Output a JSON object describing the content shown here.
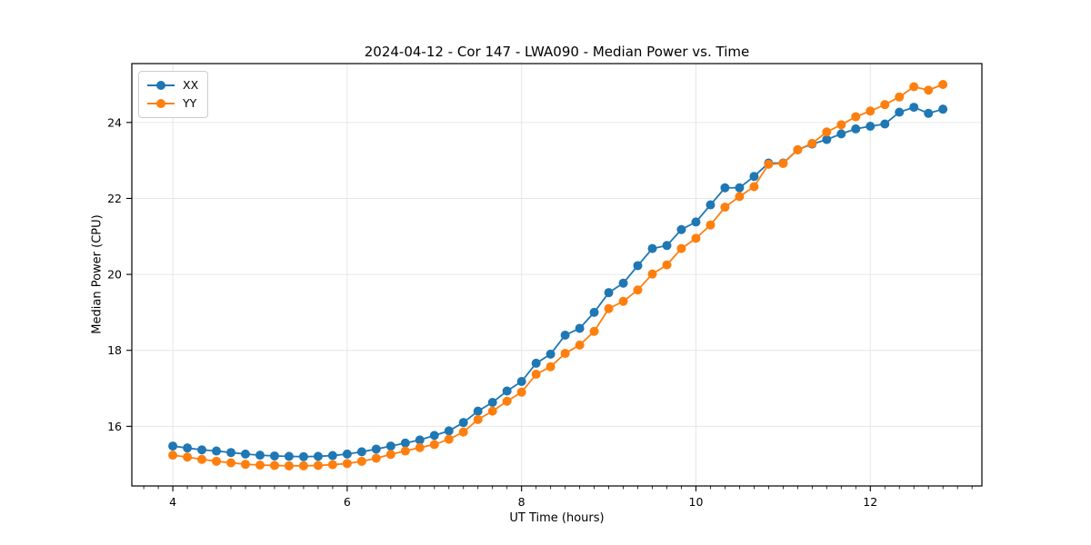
{
  "chart_data": {
    "type": "line",
    "title": "2024-04-12 - Cor 147 - LWA090 - Median Power vs. Time",
    "xlabel": "UT Time (hours)",
    "ylabel": "Median Power (CPU)",
    "xlim": [
      3.53,
      13.28
    ],
    "ylim": [
      14.43,
      25.55
    ],
    "x_major_ticks": [
      4,
      6,
      8,
      10,
      12
    ],
    "x_minor_tick_step": 0.16667,
    "y_major_ticks": [
      16,
      18,
      20,
      22,
      24
    ],
    "grid": true,
    "legend_position": "upper left",
    "marker": "circle",
    "x": [
      4.0,
      4.167,
      4.333,
      4.5,
      4.667,
      4.833,
      5.0,
      5.167,
      5.333,
      5.5,
      5.667,
      5.833,
      6.0,
      6.167,
      6.333,
      6.5,
      6.667,
      6.833,
      7.0,
      7.167,
      7.333,
      7.5,
      7.667,
      7.833,
      8.0,
      8.167,
      8.333,
      8.5,
      8.667,
      8.833,
      9.0,
      9.167,
      9.333,
      9.5,
      9.667,
      9.833,
      10.0,
      10.167,
      10.333,
      10.5,
      10.667,
      10.833,
      11.0,
      11.167,
      11.333,
      11.5,
      11.667,
      11.833,
      12.0,
      12.167,
      12.333,
      12.5,
      12.667,
      12.833
    ],
    "series": [
      {
        "name": "XX",
        "color": "#1f77b4",
        "values": [
          15.48,
          15.43,
          15.38,
          15.35,
          15.31,
          15.27,
          15.24,
          15.22,
          15.21,
          15.2,
          15.21,
          15.23,
          15.27,
          15.33,
          15.4,
          15.48,
          15.56,
          15.64,
          15.76,
          15.88,
          16.1,
          16.4,
          16.63,
          16.93,
          17.18,
          17.66,
          17.9,
          18.4,
          18.58,
          19.0,
          19.52,
          19.77,
          20.23,
          20.68,
          20.76,
          21.18,
          21.38,
          21.83,
          22.28,
          22.28,
          22.58,
          22.93,
          22.93,
          23.28,
          23.43,
          23.55,
          23.7,
          23.83,
          23.9,
          23.96,
          24.27,
          24.4,
          24.24,
          24.35
        ]
      },
      {
        "name": "YY",
        "color": "#ff7f0e",
        "values": [
          15.24,
          15.19,
          15.13,
          15.08,
          15.04,
          15.0,
          14.98,
          14.97,
          14.96,
          14.96,
          14.97,
          14.99,
          15.02,
          15.08,
          15.16,
          15.26,
          15.35,
          15.44,
          15.52,
          15.66,
          15.85,
          16.18,
          16.4,
          16.66,
          16.9,
          17.37,
          17.57,
          17.92,
          18.14,
          18.5,
          19.1,
          19.29,
          19.59,
          20.01,
          20.25,
          20.68,
          20.95,
          21.3,
          21.77,
          22.05,
          22.31,
          22.9,
          22.92,
          23.28,
          23.45,
          23.75,
          23.94,
          24.15,
          24.3,
          24.47,
          24.67,
          24.94,
          24.85,
          25.0
        ]
      }
    ]
  },
  "colors": {
    "grid": "#e6e6e6",
    "spine": "#000000",
    "tick": "#000000",
    "background": "#ffffff"
  }
}
